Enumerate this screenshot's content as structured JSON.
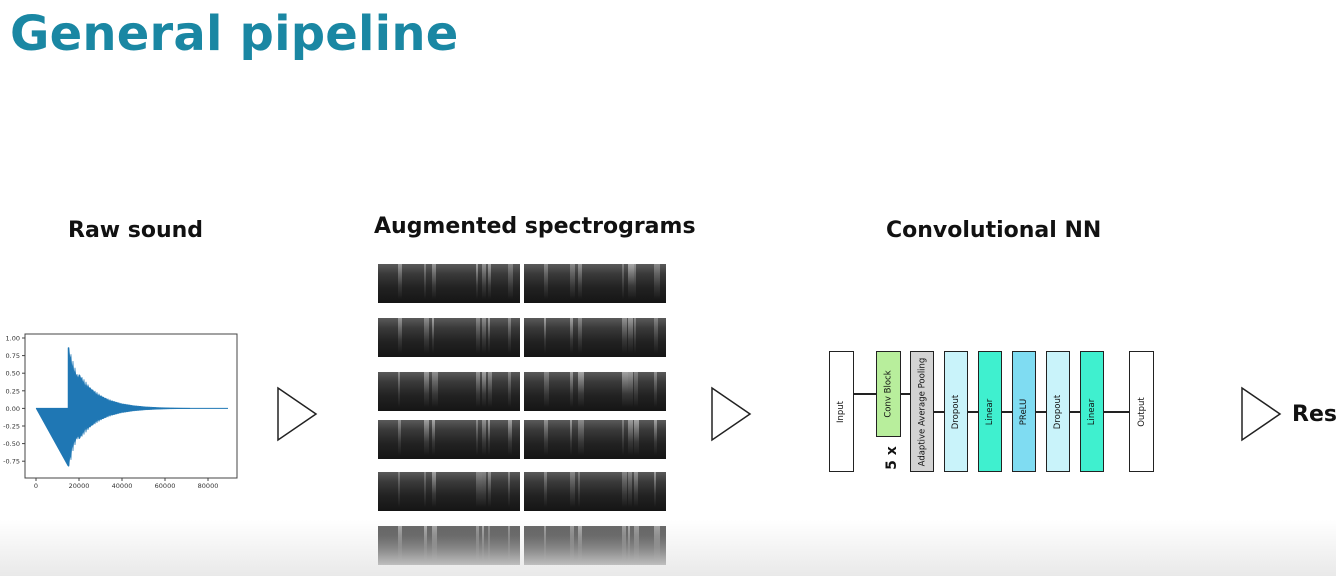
{
  "title": "General pipeline",
  "sections": {
    "raw_sound": "Raw sound",
    "spectrograms": "Augmented spectrograms",
    "cnn": "Convolutional NN"
  },
  "waveform_plot": {
    "y_ticks": [
      "1.00",
      "0.75",
      "0.50",
      "0.25",
      "0.00",
      "-0.25",
      "-0.50",
      "-0.75"
    ],
    "x_ticks": [
      "0",
      "20000",
      "40000",
      "60000",
      "80000"
    ],
    "line_color": "#1f77b4"
  },
  "network": {
    "layers": [
      {
        "label": "Input",
        "color": "#ffffff"
      },
      {
        "label": "Conv Block",
        "color": "#b8ee9c"
      },
      {
        "label": "Adaptive Average Pooling",
        "color": "#d3d3d3"
      },
      {
        "label": "Dropout",
        "color": "#c9f3fa"
      },
      {
        "label": "Linear",
        "color": "#3ff0cf"
      },
      {
        "label": "PReLU",
        "color": "#7fdcf2"
      },
      {
        "label": "Dropout",
        "color": "#c9f3fa"
      },
      {
        "label": "Linear",
        "color": "#3ff0cf"
      },
      {
        "label": "Output",
        "color": "#ffffff"
      }
    ],
    "repeat": "5 x"
  },
  "result_label": "Resu",
  "colors": {
    "title": "#1a87a3",
    "waveform": "#1f77b4"
  }
}
